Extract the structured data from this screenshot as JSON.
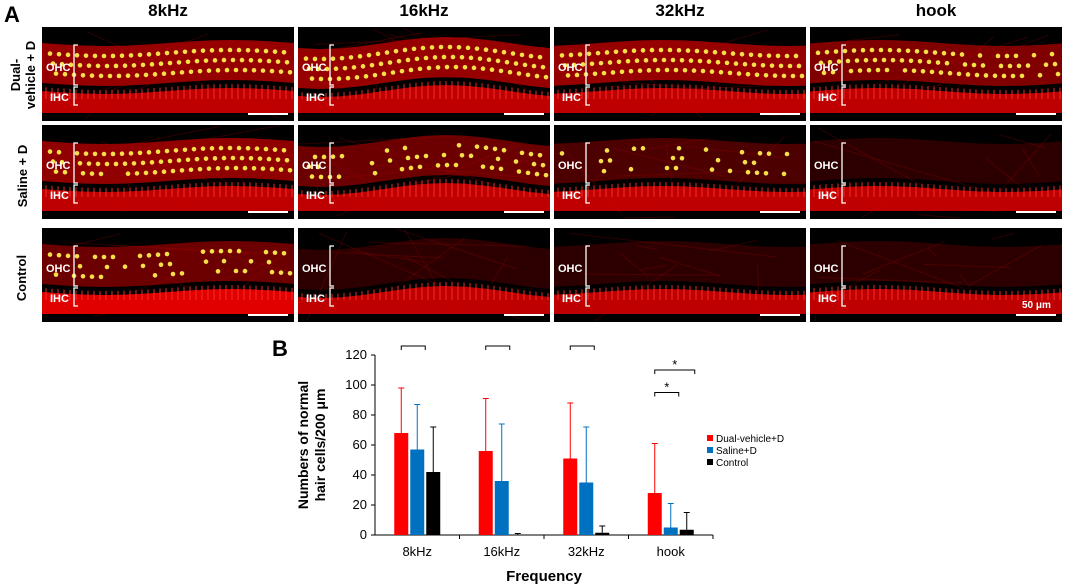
{
  "panel_a": {
    "letter": "A",
    "columns": [
      "8kHz",
      "16kHz",
      "32kHz",
      "hook"
    ],
    "rows": [
      "Dual-vehicle + D",
      "Saline + D",
      "Control"
    ],
    "row_label_lines": [
      [
        "Dual-",
        "vehicle + D"
      ],
      [
        "Saline + D"
      ],
      [
        "Control"
      ]
    ],
    "ohc_label": "OHC",
    "ihc_label": "IHC",
    "scale_text": "50 μm",
    "ohc_density": [
      [
        1,
        1,
        1,
        0.8
      ],
      [
        0.95,
        0.6,
        0.3,
        0
      ],
      [
        0.6,
        0,
        0,
        0
      ]
    ]
  },
  "panel_b": {
    "letter": "B",
    "legend": [
      "Dual-vehicle+D",
      "Saline+D",
      "Control"
    ],
    "significance": {
      "double": "**",
      "single": "*"
    }
  },
  "colors": {
    "dual": "#ff0000",
    "saline": "#0070c0",
    "control": "#000000",
    "tissue": "#e00000",
    "hair_cell": "#f5e04a"
  },
  "chart_data": {
    "type": "bar",
    "categories": [
      "8kHz",
      "16kHz",
      "32kHz",
      "hook"
    ],
    "series": [
      {
        "name": "Dual-vehicle+D",
        "values": [
          68,
          56,
          51,
          28
        ],
        "errors": [
          30,
          35,
          37,
          33
        ]
      },
      {
        "name": "Saline+D",
        "values": [
          57,
          36,
          35,
          5
        ],
        "errors": [
          30,
          38,
          37,
          16
        ]
      },
      {
        "name": "Control",
        "values": [
          42,
          0,
          1.5,
          3.5
        ],
        "errors": [
          30,
          1,
          4.5,
          11.5
        ]
      }
    ],
    "xlabel": "Frequency",
    "ylabel_lines": [
      "Numbers of normal",
      "hair cells/200 μm"
    ],
    "ylim": [
      0,
      120
    ],
    "yticks": [
      0,
      20,
      40,
      60,
      80,
      100,
      120
    ],
    "legend_position": "right"
  }
}
